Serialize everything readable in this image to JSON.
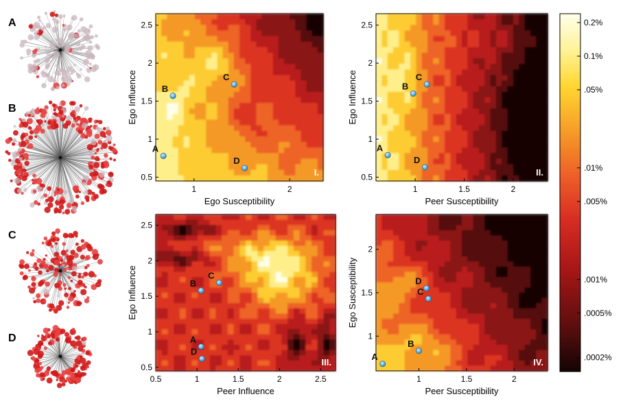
{
  "network_labels": [
    "A",
    "B",
    "C",
    "D"
  ],
  "colorbar": {
    "ticks": [
      "0.2%",
      "0.1%",
      ".05%",
      ".01%",
      ".005%",
      ".001%",
      ".0005%",
      ".0002%"
    ],
    "levels": [
      0.002,
      0.001,
      0.0005,
      0.0001,
      5e-05,
      1e-05,
      5e-06,
      2e-06
    ],
    "scale": "log",
    "colors": [
      "#fffde0",
      "#fff3a0",
      "#ffd23a",
      "#f49a26",
      "#e7522a",
      "#c42020",
      "#7a1212",
      "#220606"
    ]
  },
  "chart_data": [
    {
      "type": "heatmap",
      "panel": "I.",
      "xlabel": "Ego Susceptibility",
      "ylabel": "Ego Influence",
      "xlim": [
        0.6,
        2.35
      ],
      "ylim": [
        0.45,
        2.65
      ],
      "xticks": [
        1,
        2
      ],
      "yticks": [
        0.5,
        1,
        1.5,
        2,
        2.5
      ],
      "grid": false,
      "points": [
        {
          "label": "A",
          "x": 0.68,
          "y": 0.78
        },
        {
          "label": "B",
          "x": 0.78,
          "y": 1.57
        },
        {
          "label": "C",
          "x": 1.42,
          "y": 1.72
        },
        {
          "label": "D",
          "x": 1.53,
          "y": 0.62
        }
      ]
    },
    {
      "type": "heatmap",
      "panel": "II.",
      "xlabel": "Peer Susceptibility",
      "ylabel": "Ego Influence",
      "xlim": [
        0.6,
        2.35
      ],
      "ylim": [
        0.45,
        2.65
      ],
      "xticks": [
        1,
        1.5,
        2
      ],
      "yticks": [
        0.5,
        1,
        1.5,
        2,
        2.5
      ],
      "grid": false,
      "points": [
        {
          "label": "A",
          "x": 0.72,
          "y": 0.79
        },
        {
          "label": "B",
          "x": 0.98,
          "y": 1.6
        },
        {
          "label": "C",
          "x": 1.12,
          "y": 1.72
        },
        {
          "label": "D",
          "x": 1.1,
          "y": 0.63
        }
      ]
    },
    {
      "type": "heatmap",
      "panel": "III.",
      "xlabel": "Peer Influence",
      "ylabel": "Ego Influence",
      "xlim": [
        0.5,
        2.68
      ],
      "ylim": [
        0.45,
        2.65
      ],
      "xticks": [
        0.5,
        1,
        1.5,
        2,
        2.5
      ],
      "yticks": [
        0.5,
        1,
        1.5,
        2,
        2.5
      ],
      "grid": false,
      "points": [
        {
          "label": "A",
          "x": 1.05,
          "y": 0.79
        },
        {
          "label": "B",
          "x": 1.05,
          "y": 1.58
        },
        {
          "label": "C",
          "x": 1.27,
          "y": 1.69
        },
        {
          "label": "D",
          "x": 1.06,
          "y": 0.62
        }
      ]
    },
    {
      "type": "heatmap",
      "panel": "IV.",
      "xlabel": "Peer Susceptibility",
      "ylabel": "Ego Susceptibility",
      "xlim": [
        0.55,
        2.35
      ],
      "ylim": [
        0.6,
        2.4
      ],
      "xticks": [
        1,
        1.5,
        2
      ],
      "yticks": [
        1,
        1.5,
        2
      ],
      "grid": false,
      "points": [
        {
          "label": "A",
          "x": 0.62,
          "y": 0.68
        },
        {
          "label": "B",
          "x": 1.0,
          "y": 0.83
        },
        {
          "label": "D",
          "x": 1.08,
          "y": 1.55
        },
        {
          "label": "C",
          "x": 1.1,
          "y": 1.43
        }
      ]
    }
  ]
}
